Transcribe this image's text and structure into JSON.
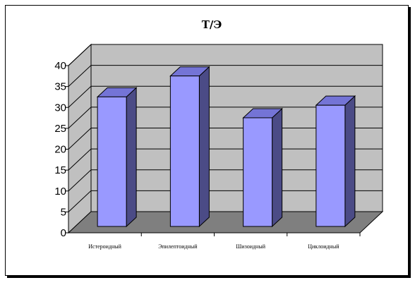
{
  "chart_data": {
    "type": "bar",
    "title": "Т/Э",
    "categories": [
      "Истероидный",
      "Эпилептоидный",
      "Шизоидный",
      "Циклоидный"
    ],
    "values": [
      31,
      36,
      26,
      29
    ],
    "ylim": [
      0,
      40
    ],
    "ytick_step": 5,
    "yticks": [
      "0",
      "5",
      "10",
      "15",
      "20",
      "25",
      "30",
      "35",
      "40"
    ],
    "grid": true,
    "legend": "none",
    "colors": {
      "bar_front": "#9999ff",
      "bar_top": "#7474d6",
      "bar_side": "#4b4b86",
      "wall": "#c0c0c0",
      "floor": "#7f7f7f",
      "grid": "#000000"
    }
  }
}
